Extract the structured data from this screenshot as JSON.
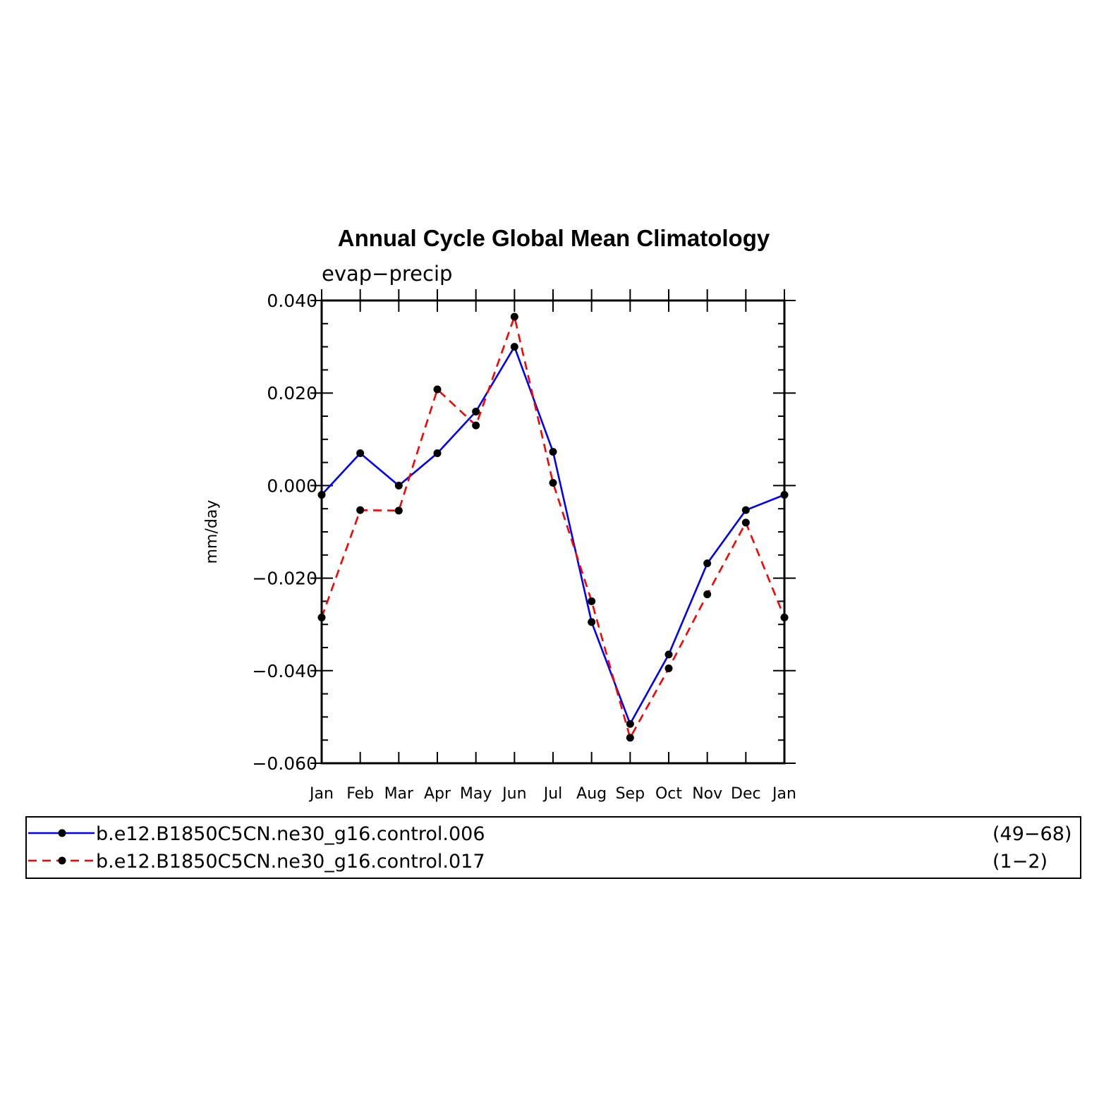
{
  "chart_data": {
    "type": "line",
    "title": "Annual Cycle Global Mean Climatology",
    "subtitle": "evap−precip",
    "xlabel": "",
    "ylabel": "mm/day",
    "categories": [
      "Jan",
      "Feb",
      "Mar",
      "Apr",
      "May",
      "Jun",
      "Jul",
      "Aug",
      "Sep",
      "Oct",
      "Nov",
      "Dec",
      "Jan"
    ],
    "ylim": [
      -0.06,
      0.04
    ],
    "yticks": [
      0.04,
      0.02,
      0.0,
      -0.02,
      -0.04,
      -0.06
    ],
    "ytick_labels": [
      "0.040",
      "0.020",
      "0.000",
      "−0.020",
      "−0.040",
      "−0.060"
    ],
    "grid": false,
    "legend_position": "bottom",
    "series": [
      {
        "name": "b.e12.B1850C5CN.ne30_g16.control.006",
        "years": "(49−68)",
        "color": "#0000ff",
        "line_style": "solid",
        "marker": "filled-circle",
        "values": [
          -0.002,
          0.007,
          0.0,
          0.007,
          0.016,
          0.03,
          0.0073,
          -0.0295,
          -0.0515,
          -0.0365,
          -0.0168,
          -0.0053,
          -0.002
        ]
      },
      {
        "name": "b.e12.B1850C5CN.ne30_g16.control.017",
        "years": "(1−2)",
        "color": "#ff0000",
        "line_style": "dashed",
        "marker": "filled-circle",
        "values": [
          -0.0285,
          -0.0053,
          -0.0054,
          0.0208,
          0.013,
          0.0365,
          0.0006,
          -0.025,
          -0.0545,
          -0.0395,
          -0.0235,
          -0.008,
          -0.0285
        ]
      }
    ]
  }
}
